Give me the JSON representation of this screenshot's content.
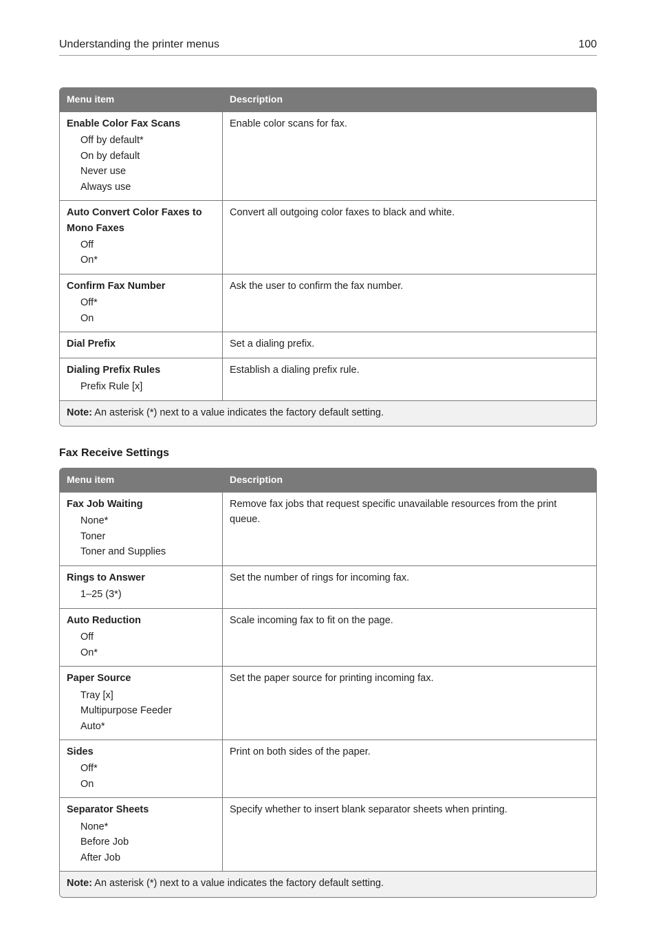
{
  "pageHeader": {
    "title": "Understanding the printer menus",
    "pageNumber": "100"
  },
  "colors": {
    "header_bg": "#7a7a7a",
    "header_fg": "#ffffff",
    "border": "#777777",
    "note_bg": "#f1f1f1",
    "rule": "#9a9a9a"
  },
  "tables": [
    {
      "heading": null,
      "columns": [
        "Menu item",
        "Description"
      ],
      "rows": [
        {
          "title": "Enable Color Fax Scans",
          "options": [
            "Off by default*",
            "On by default",
            "Never use",
            "Always use"
          ],
          "description": "Enable color scans for fax."
        },
        {
          "title": "Auto Convert Color Faxes to Mono Faxes",
          "options": [
            "Off",
            "On*"
          ],
          "description": "Convert all outgoing color faxes to black and white."
        },
        {
          "title": "Confirm Fax Number",
          "options": [
            "Off*",
            "On"
          ],
          "description": "Ask the user to confirm the fax number."
        },
        {
          "title": "Dial Prefix",
          "options": [],
          "description": "Set a dialing prefix."
        },
        {
          "title": "Dialing Prefix Rules",
          "options": [
            "Prefix Rule [x]"
          ],
          "description": "Establish a dialing prefix rule."
        }
      ],
      "note": {
        "label": "Note:",
        "text": " An asterisk (*) next to a value indicates the factory default setting."
      }
    },
    {
      "heading": "Fax Receive Settings",
      "columns": [
        "Menu item",
        "Description"
      ],
      "rows": [
        {
          "title": "Fax Job Waiting",
          "options": [
            "None*",
            "Toner",
            "Toner and Supplies"
          ],
          "description": "Remove fax jobs that request specific unavailable resources from the print queue."
        },
        {
          "title": "Rings to Answer",
          "options": [
            "1–25 (3*)"
          ],
          "description": "Set the number of rings for incoming fax."
        },
        {
          "title": "Auto Reduction",
          "options": [
            "Off",
            "On*"
          ],
          "description": "Scale incoming fax to fit on the page."
        },
        {
          "title": "Paper Source",
          "options": [
            "Tray [x]",
            "Multipurpose Feeder",
            "Auto*"
          ],
          "description": "Set the paper source for printing incoming fax."
        },
        {
          "title": "Sides",
          "options": [
            "Off*",
            "On"
          ],
          "description": "Print on both sides of the paper."
        },
        {
          "title": "Separator Sheets",
          "options": [
            "None*",
            "Before Job",
            "After Job"
          ],
          "description": "Specify whether to insert blank separator sheets when printing."
        }
      ],
      "note": {
        "label": "Note:",
        "text": " An asterisk (*) next to a value indicates the factory default setting."
      }
    }
  ]
}
